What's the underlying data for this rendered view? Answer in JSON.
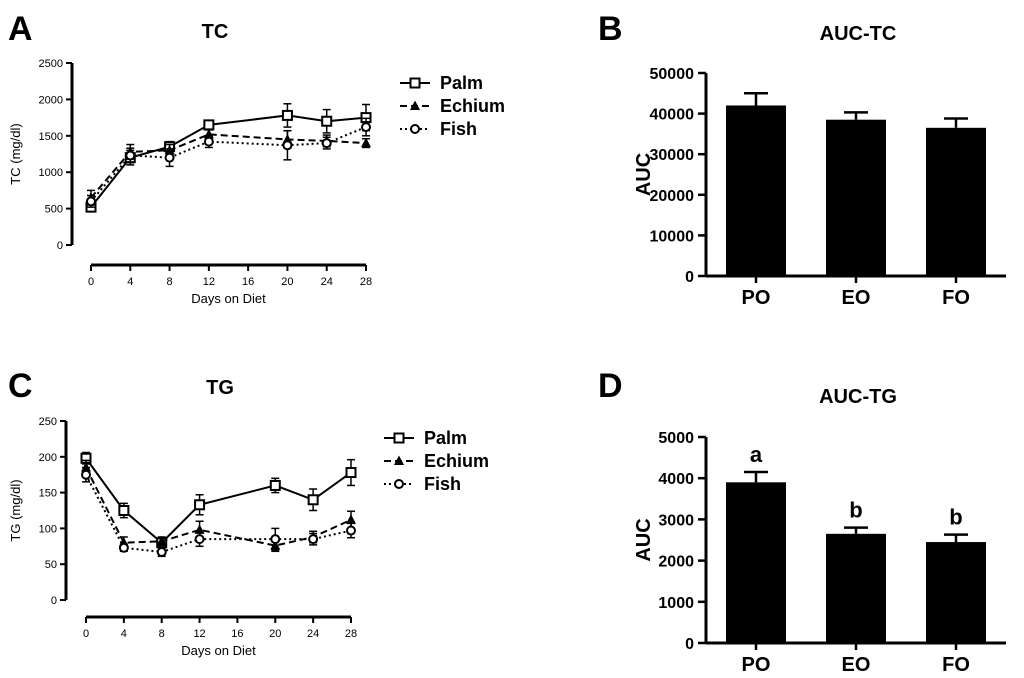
{
  "panels": {
    "a": "A",
    "b": "B",
    "c": "C",
    "d": "D"
  },
  "chart_data": [
    {
      "id": "A",
      "type": "line",
      "title": "TC",
      "xlabel": "Days on Diet",
      "ylabel": "TC (mg/dl)",
      "xlim": [
        0,
        28
      ],
      "ylim": [
        0,
        2500
      ],
      "x_ticks": [
        0,
        4,
        8,
        12,
        16,
        20,
        24,
        28
      ],
      "y_ticks": [
        0,
        500,
        1000,
        1500,
        2000,
        2500
      ],
      "x": [
        0,
        4,
        8,
        12,
        20,
        24,
        28
      ],
      "series": [
        {
          "name": "Palm",
          "values": [
            520,
            1200,
            1350,
            1650,
            1780,
            1700,
            1750
          ],
          "errors": [
            60,
            100,
            70,
            40,
            160,
            160,
            180
          ],
          "line": "solid",
          "marker": "square-open"
        },
        {
          "name": "Echium",
          "values": [
            650,
            1280,
            1300,
            1520,
            1450,
            1430,
            1400
          ],
          "errors": [
            100,
            100,
            80,
            60,
            120,
            80,
            60
          ],
          "line": "dashed",
          "marker": "triangle"
        },
        {
          "name": "Fish",
          "values": [
            600,
            1230,
            1200,
            1420,
            1370,
            1400,
            1620
          ],
          "errors": [
            80,
            100,
            120,
            80,
            200,
            80,
            120
          ],
          "line": "dotted",
          "marker": "circle-open"
        }
      ]
    },
    {
      "id": "B",
      "type": "bar",
      "title": "AUC-TC",
      "xlabel": "",
      "ylabel": "AUC",
      "ylim": [
        0,
        50000
      ],
      "y_ticks": [
        0,
        10000,
        20000,
        30000,
        40000,
        50000
      ],
      "categories": [
        "PO",
        "EO",
        "FO"
      ],
      "values": [
        42000,
        38500,
        36500
      ],
      "errors": [
        3000,
        1800,
        2300
      ],
      "labels": []
    },
    {
      "id": "C",
      "type": "line",
      "title": "TG",
      "xlabel": "Days on Diet",
      "ylabel": "TG (mg/dl)",
      "xlim": [
        0,
        28
      ],
      "ylim": [
        0,
        250
      ],
      "x_ticks": [
        0,
        4,
        8,
        12,
        16,
        20,
        24,
        28
      ],
      "y_ticks": [
        0,
        50,
        100,
        150,
        200,
        250
      ],
      "x": [
        0,
        4,
        8,
        12,
        20,
        24,
        28
      ],
      "series": [
        {
          "name": "Palm",
          "values": [
            198,
            125,
            80,
            133,
            160,
            140,
            178
          ],
          "errors": [
            8,
            10,
            6,
            14,
            10,
            15,
            18
          ],
          "line": "solid",
          "marker": "square-open"
        },
        {
          "name": "Echium",
          "values": [
            185,
            80,
            82,
            98,
            76,
            88,
            112
          ],
          "errors": [
            10,
            8,
            6,
            12,
            8,
            8,
            12
          ],
          "line": "dashed",
          "marker": "triangle"
        },
        {
          "name": "Fish",
          "values": [
            175,
            73,
            67,
            85,
            85,
            85,
            97
          ],
          "errors": [
            10,
            5,
            6,
            10,
            15,
            8,
            10
          ],
          "line": "dotted",
          "marker": "circle-open"
        }
      ]
    },
    {
      "id": "D",
      "type": "bar",
      "title": "AUC-TG",
      "xlabel": "",
      "ylabel": "AUC",
      "ylim": [
        0,
        5000
      ],
      "y_ticks": [
        0,
        1000,
        2000,
        3000,
        4000,
        5000
      ],
      "categories": [
        "PO",
        "EO",
        "FO"
      ],
      "values": [
        3900,
        2650,
        2450
      ],
      "errors": [
        250,
        150,
        180
      ],
      "labels": [
        "a",
        "b",
        "b"
      ]
    }
  ]
}
